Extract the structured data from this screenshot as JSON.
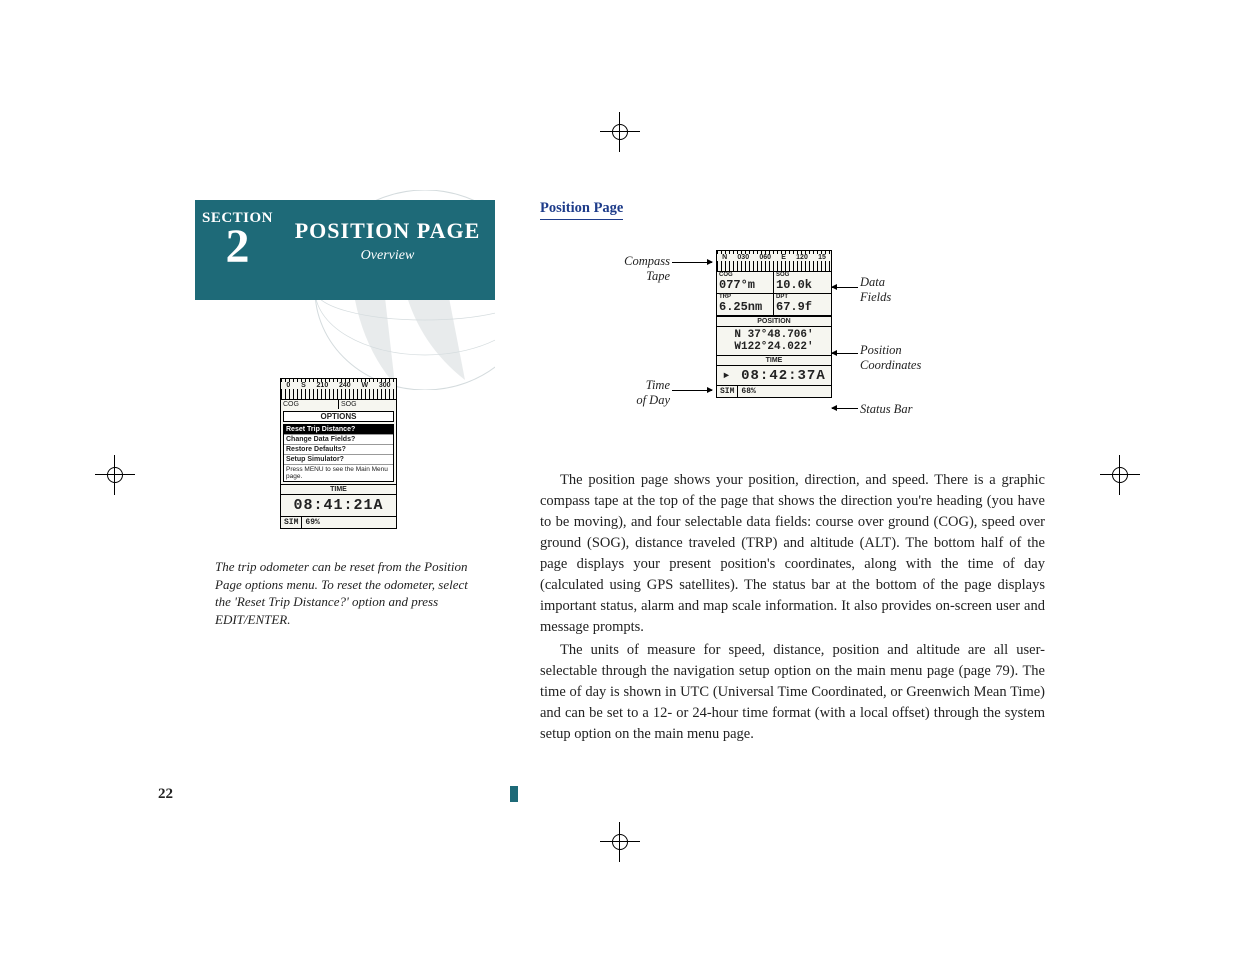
{
  "page_number": "22",
  "section": {
    "label": "SECTION",
    "number": "2",
    "title": "POSITION PAGE",
    "subtitle": "Overview",
    "bg_color": "#1e6a78",
    "fg_color": "#ffffff"
  },
  "left_lcd": {
    "scale_values": [
      "0",
      "S",
      "210",
      "240",
      "W",
      "300"
    ],
    "row2_left": "COG",
    "row2_right": "SOG",
    "options_title": "OPTIONS",
    "options": [
      "Reset Trip Distance?",
      "Change Data Fields?",
      "Restore Defaults?",
      "Setup Simulator?",
      "Press MENU to see the Main Menu page."
    ],
    "time_label": "TIME",
    "time_value": "08:41:21A",
    "status_left": "SIM",
    "status_right": "69%"
  },
  "left_caption": "The trip odometer can be reset from the Position Page options menu. To reset the odometer, select the 'Reset Trip Distance?' option and press EDIT/ENTER.",
  "right_heading": "Position Page",
  "right_lcd": {
    "scale_values": [
      "N",
      "030",
      "060",
      "E",
      "120",
      "15"
    ],
    "fields": {
      "cog_label": "COG",
      "cog_value": "077°m",
      "sog_label": "SOG",
      "sog_value": "10.0k",
      "trp_label": "TRP",
      "trp_value": "6.25nm",
      "dpt_label": "DPT",
      "dpt_value": "67.9f"
    },
    "position_label": "POSITION",
    "lat": "N  37°48.706'",
    "lon": "W122°24.022'",
    "time_label": "TIME",
    "time_value": "08:42:37A",
    "status_left": "SIM",
    "status_right": "68%"
  },
  "annotations": {
    "compass_tape": "Compass\nTape",
    "data_fields": "Data\nFields",
    "position_coords": "Position\nCoordinates",
    "time_of_day": "Time\nof Day",
    "status_bar": "Status Bar"
  },
  "paragraph1": "The position page shows your position, direction, and speed. There is a graphic compass tape at the top of the page that shows the direction you're heading (you have to be moving), and four selectable data fields: course over ground (COG), speed over ground (SOG), distance traveled (TRP) and altitude (ALT). The bottom half of the page displays your present position's coordinates, along with the time of day (calculated using GPS satellites). The status bar at the bottom of the page displays important status, alarm and map scale information. It also provides on-screen user and message prompts.",
  "paragraph2": "The units of measure for speed, distance, position and altitude are all user-selectable through the navigation setup option on the main menu page (page 79). The time of day is shown in UTC (Universal Time Coordinated, or Greenwich Mean Time) and can be set to a 12- or 24-hour time format (with a local offset) through the system setup option on the main menu page.",
  "colors": {
    "heading_color": "#1e3c8a",
    "body_text": "#222222",
    "lcd_bg": "#f6f6f0"
  }
}
